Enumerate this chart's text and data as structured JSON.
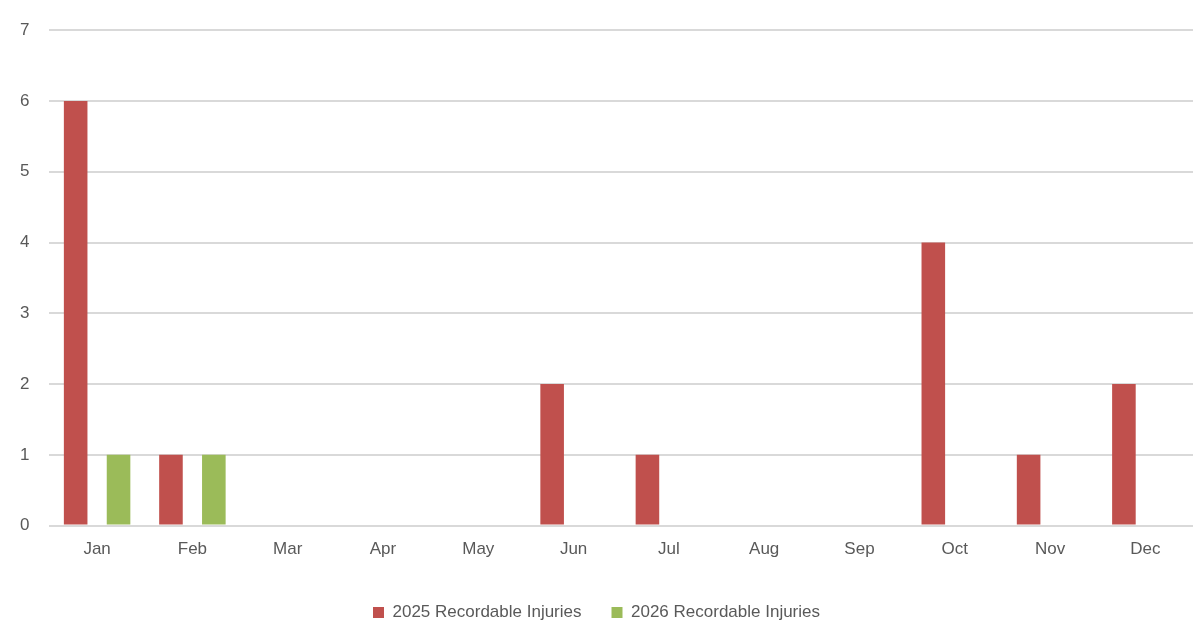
{
  "chart_data": {
    "type": "bar",
    "categories": [
      "Jan",
      "Feb",
      "Mar",
      "Apr",
      "May",
      "Jun",
      "Jul",
      "Aug",
      "Sep",
      "Oct",
      "Nov",
      "Dec"
    ],
    "series": [
      {
        "name": "2025 Recordable Injuries",
        "color": "#c0504d",
        "values": [
          6,
          1,
          0,
          0,
          0,
          2,
          1,
          0,
          0,
          4,
          1,
          2
        ]
      },
      {
        "name": "2026 Recordable Injuries",
        "color": "#9bbb59",
        "values": [
          1,
          1,
          null,
          null,
          null,
          null,
          null,
          null,
          null,
          null,
          null,
          null
        ]
      }
    ],
    "ylim": [
      0,
      7
    ],
    "yticks": [
      0,
      1,
      2,
      3,
      4,
      5,
      6,
      7
    ],
    "grid": "y",
    "legend": "bottom"
  }
}
